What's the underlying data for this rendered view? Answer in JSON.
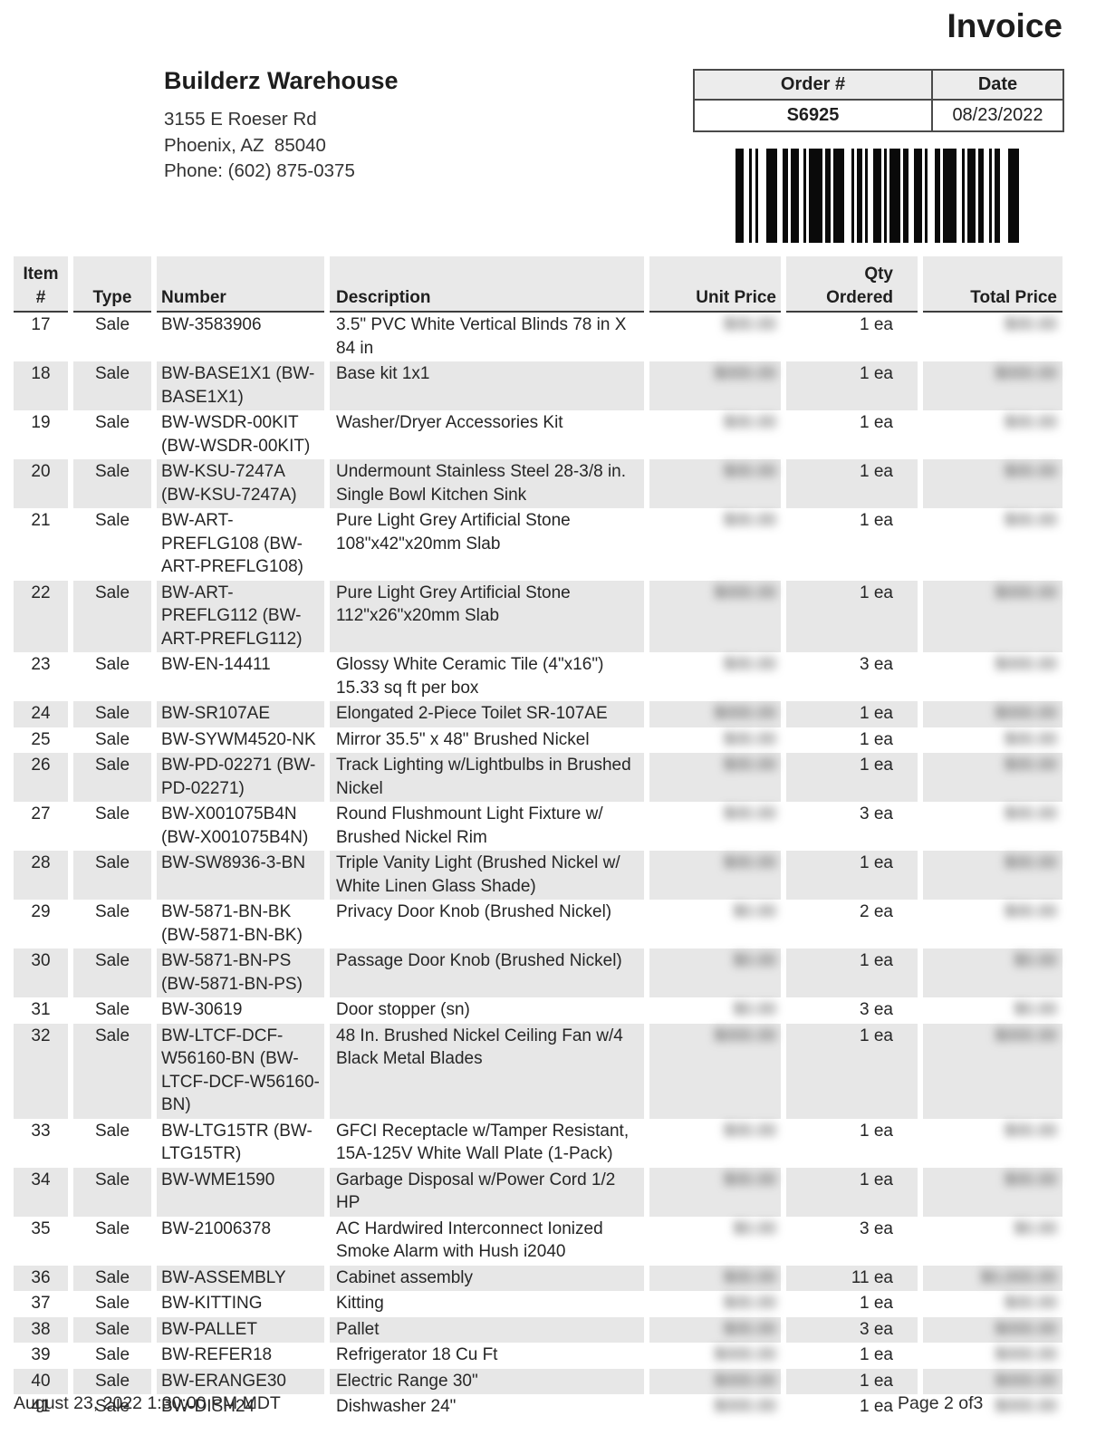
{
  "title": "Invoice",
  "company": {
    "name": "Builderz Warehouse",
    "address_line1": "3155 E Roeser Rd",
    "address_line2": "Phoenix, AZ  85040",
    "phone": "Phone: (602) 875-0375"
  },
  "order": {
    "order_label": "Order #",
    "date_label": "Date",
    "order_number": "S6925",
    "date": "08/23/2022"
  },
  "barcode": {
    "bars": [
      9,
      6,
      3,
      4,
      3,
      9,
      12,
      6,
      6,
      3,
      9,
      5,
      3,
      3,
      15,
      3,
      6,
      3,
      12,
      8,
      3,
      3,
      6,
      3,
      3,
      6,
      9,
      3,
      3,
      3,
      12,
      3,
      6,
      6,
      9,
      3,
      3,
      8,
      6,
      3,
      15,
      6,
      3,
      3,
      9,
      3,
      6,
      6,
      3,
      3,
      6,
      9,
      12
    ]
  },
  "table": {
    "columns": [
      {
        "key": "item",
        "lines": [
          "Item",
          "#"
        ]
      },
      {
        "key": "type",
        "lines": [
          "Type"
        ]
      },
      {
        "key": "number",
        "lines": [
          "Number"
        ]
      },
      {
        "key": "description",
        "lines": [
          "Description"
        ]
      },
      {
        "key": "unit-price",
        "lines": [
          "Unit Price"
        ]
      },
      {
        "key": "qty-ordered",
        "lines": [
          "Qty",
          "Ordered"
        ]
      },
      {
        "key": "total-price",
        "lines": [
          "Total Price"
        ]
      }
    ],
    "rows": [
      {
        "item": "17",
        "type": "Sale",
        "number": "BW-3583906",
        "description": "3.5\" PVC White Vertical Blinds 78 in X 84 in",
        "unit_price_redacted": "$00.00",
        "qty": "1 ea",
        "total_price_redacted": "$00.00"
      },
      {
        "item": "18",
        "type": "Sale",
        "number": "BW-BASE1X1 (BW-BASE1X1)",
        "description": "Base kit 1x1",
        "unit_price_redacted": "$000.00",
        "qty": "1 ea",
        "total_price_redacted": "$000.00"
      },
      {
        "item": "19",
        "type": "Sale",
        "number": "BW-WSDR-00KIT (BW-WSDR-00KIT)",
        "description": "Washer/Dryer Accessories Kit",
        "unit_price_redacted": "$00.00",
        "qty": "1 ea",
        "total_price_redacted": "$00.00"
      },
      {
        "item": "20",
        "type": "Sale",
        "number": "BW-KSU-7247A (BW-KSU-7247A)",
        "description": "Undermount Stainless Steel 28-3/8 in. Single Bowl Kitchen Sink",
        "unit_price_redacted": "$00.00",
        "qty": "1 ea",
        "total_price_redacted": "$00.00"
      },
      {
        "item": "21",
        "type": "Sale",
        "number": "BW-ART-PREFLG108 (BW-ART-PREFLG108)",
        "description": "Pure Light Grey Artificial Stone 108\"x42\"x20mm Slab",
        "unit_price_redacted": "$00.00",
        "qty": "1 ea",
        "total_price_redacted": "$00.00"
      },
      {
        "item": "22",
        "type": "Sale",
        "number": "BW-ART-PREFLG112 (BW-ART-PREFLG112)",
        "description": "Pure Light Grey Artificial Stone 112\"x26\"x20mm Slab",
        "unit_price_redacted": "$000.00",
        "qty": "1 ea",
        "total_price_redacted": "$000.00"
      },
      {
        "item": "23",
        "type": "Sale",
        "number": "BW-EN-14411",
        "description": "Glossy White Ceramic Tile (4\"x16\") 15.33 sq ft per box",
        "unit_price_redacted": "$00.00",
        "qty": "3 ea",
        "total_price_redacted": "$000.00"
      },
      {
        "item": "24",
        "type": "Sale",
        "number": "BW-SR107AE",
        "description": "Elongated 2-Piece Toilet SR-107AE",
        "unit_price_redacted": "$000.00",
        "qty": "1 ea",
        "total_price_redacted": "$000.00"
      },
      {
        "item": "25",
        "type": "Sale",
        "number": "BW-SYWM4520-NK",
        "description": "Mirror 35.5\" x 48\" Brushed Nickel",
        "unit_price_redacted": "$00.00",
        "qty": "1 ea",
        "total_price_redacted": "$00.00"
      },
      {
        "item": "26",
        "type": "Sale",
        "number": "BW-PD-02271 (BW-PD-02271)",
        "description": "Track Lighting w/Lightbulbs in Brushed Nickel",
        "unit_price_redacted": "$00.00",
        "qty": "1 ea",
        "total_price_redacted": "$00.00"
      },
      {
        "item": "27",
        "type": "Sale",
        "number": "BW-X001075B4N (BW-X001075B4N)",
        "description": "Round Flushmount Light Fixture w/ Brushed Nickel Rim",
        "unit_price_redacted": "$00.00",
        "qty": "3 ea",
        "total_price_redacted": "$00.00"
      },
      {
        "item": "28",
        "type": "Sale",
        "number": "BW-SW8936-3-BN",
        "description": "Triple Vanity Light (Brushed Nickel w/ White Linen Glass Shade)",
        "unit_price_redacted": "$00.00",
        "qty": "1 ea",
        "total_price_redacted": "$00.00"
      },
      {
        "item": "29",
        "type": "Sale",
        "number": "BW-5871-BN-BK (BW-5871-BN-BK)",
        "description": "Privacy Door Knob (Brushed Nickel)",
        "unit_price_redacted": "$0.00",
        "qty": "2 ea",
        "total_price_redacted": "$00.00"
      },
      {
        "item": "30",
        "type": "Sale",
        "number": "BW-5871-BN-PS (BW-5871-BN-PS)",
        "description": "Passage Door Knob (Brushed Nickel)",
        "unit_price_redacted": "$0.00",
        "qty": "1 ea",
        "total_price_redacted": "$0.00"
      },
      {
        "item": "31",
        "type": "Sale",
        "number": "BW-30619",
        "description": "Door stopper (sn)",
        "unit_price_redacted": "$0.00",
        "qty": "3 ea",
        "total_price_redacted": "$0.00"
      },
      {
        "item": "32",
        "type": "Sale",
        "number": "BW-LTCF-DCF-W56160-BN (BW-LTCF-DCF-W56160-BN)",
        "description": "48 In. Brushed Nickel Ceiling Fan w/4 Black Metal Blades",
        "unit_price_redacted": "$000.00",
        "qty": "1 ea",
        "total_price_redacted": "$000.00"
      },
      {
        "item": "33",
        "type": "Sale",
        "number": "BW-LTG15TR (BW-LTG15TR)",
        "description": "GFCI Receptacle w/Tamper Resistant, 15A-125V White Wall Plate (1-Pack)",
        "unit_price_redacted": "$00.00",
        "qty": "1 ea",
        "total_price_redacted": "$00.00"
      },
      {
        "item": "34",
        "type": "Sale",
        "number": "BW-WME1590",
        "description": "Garbage Disposal w/Power Cord 1/2 HP",
        "unit_price_redacted": "$00.00",
        "qty": "1 ea",
        "total_price_redacted": "$00.00"
      },
      {
        "item": "35",
        "type": "Sale",
        "number": "BW-21006378",
        "description": "AC Hardwired Interconnect Ionized Smoke Alarm with Hush i2040",
        "unit_price_redacted": "$0.00",
        "qty": "3 ea",
        "total_price_redacted": "$0.00"
      },
      {
        "item": "36",
        "type": "Sale",
        "number": "BW-ASSEMBLY",
        "description": "Cabinet assembly",
        "unit_price_redacted": "$00.00",
        "qty": "11 ea",
        "total_price_redacted": "$0,000.00"
      },
      {
        "item": "37",
        "type": "Sale",
        "number": "BW-KITTING",
        "description": "Kitting",
        "unit_price_redacted": "$00.00",
        "qty": "1 ea",
        "total_price_redacted": "$00.00"
      },
      {
        "item": "38",
        "type": "Sale",
        "number": "BW-PALLET",
        "description": "Pallet",
        "unit_price_redacted": "$00.00",
        "qty": "3 ea",
        "total_price_redacted": "$000.00"
      },
      {
        "item": "39",
        "type": "Sale",
        "number": "BW-REFER18",
        "description": "Refrigerator 18 Cu Ft",
        "unit_price_redacted": "$000.00",
        "qty": "1 ea",
        "total_price_redacted": "$000.00"
      },
      {
        "item": "40",
        "type": "Sale",
        "number": "BW-ERANGE30",
        "description": "Electric Range 30\"",
        "unit_price_redacted": "$000.00",
        "qty": "1 ea",
        "total_price_redacted": "$000.00"
      },
      {
        "item": "41",
        "type": "Sale",
        "number": "BW-DISH24",
        "description": "Dishwasher 24\"",
        "unit_price_redacted": "$000.00",
        "qty": "1 ea",
        "total_price_redacted": "$000.00"
      }
    ]
  },
  "footer": {
    "timestamp": "August 23, 2022 1:30:00 PM MDT",
    "page": "Page 2 of3"
  },
  "colors": {
    "row_shade": "#e7e7e7",
    "header_shade": "#e9e9e9",
    "border_dark": "#4a4a4a",
    "text": "#262626"
  }
}
